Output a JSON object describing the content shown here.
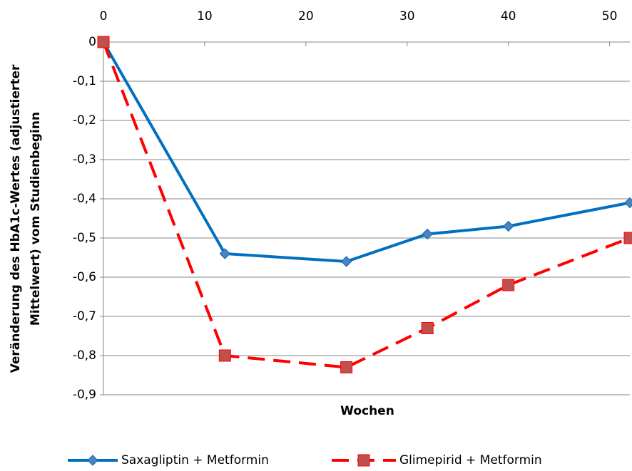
{
  "chart_data": {
    "type": "line",
    "xlabel": "Wochen",
    "ylabel": [
      "Veränderung des HbA1c-Wertes (adjustierter",
      "Mittelwert) vom Studienbeginn"
    ],
    "x": [
      0,
      12,
      24,
      32,
      40,
      52
    ],
    "series": [
      {
        "name": "Saxagliptin + Metformin",
        "color": "#0070c0",
        "marker": "diamond",
        "dash": false,
        "values": [
          0,
          -0.54,
          -0.56,
          -0.49,
          -0.47,
          -0.41
        ]
      },
      {
        "name": "Glimepirid + Metformin",
        "color": "#ff0000",
        "marker": "square",
        "dash": true,
        "values": [
          0,
          -0.8,
          -0.83,
          -0.73,
          -0.62,
          -0.5
        ]
      }
    ],
    "xlim": [
      0,
      52
    ],
    "xticks": [
      0,
      10,
      20,
      30,
      40,
      50
    ],
    "ylim": [
      -0.9,
      0
    ],
    "yticks": [
      0,
      {
        "value": -0.1,
        "label": "-0,1"
      },
      {
        "value": -0.2,
        "label": "-0,2"
      },
      {
        "value": -0.3,
        "label": "-0,3"
      },
      {
        "value": -0.4,
        "label": "-0,4"
      },
      {
        "value": -0.5,
        "label": "-0,5"
      },
      {
        "value": -0.6,
        "label": "-0,6"
      },
      {
        "value": -0.7,
        "label": "-0,7"
      },
      {
        "value": -0.8,
        "label": "-0,8"
      },
      {
        "value": -0.9,
        "label": "-0,9"
      }
    ],
    "grid": true,
    "legend": "bottom"
  }
}
